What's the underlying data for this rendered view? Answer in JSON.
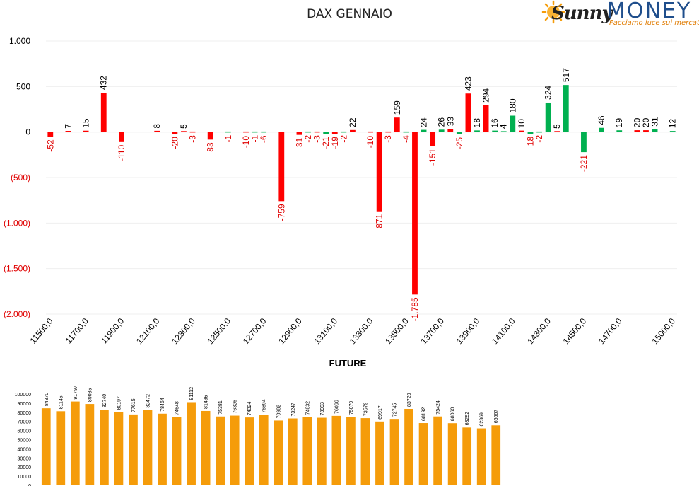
{
  "logo": {
    "brand_a": "Sunny",
    "brand_b": "MONEY",
    "tagline": "Facciamo luce sui mercati"
  },
  "colors": {
    "positive": "#00b050",
    "negative": "#ff0000",
    "future_bar": "#f59c0a",
    "negative_label": "#e00000"
  },
  "chart_data": [
    {
      "type": "bar",
      "title": "DAX GENNAIO",
      "ylim": [
        -2000,
        1000
      ],
      "yticks": [
        1000,
        500,
        0,
        -500,
        -1000,
        -1500,
        -2000
      ],
      "ytick_labels": [
        "1.000",
        "500",
        "0",
        "(500)",
        "(1.000)",
        "(1.500)",
        "(2.000)"
      ],
      "xtick_labels": [
        "11500,0",
        "11700,0",
        "11900,0",
        "12100,0",
        "12300,0",
        "12500,0",
        "12700,0",
        "12900,0",
        "13100,0",
        "13300,0",
        "13500,0",
        "13700,0",
        "13900,0",
        "14100,0",
        "14300,0",
        "14500,0",
        "14700,0",
        "15000,0"
      ],
      "x": [
        11500,
        11550,
        11600,
        11650,
        11700,
        11750,
        11800,
        11850,
        11900,
        11950,
        12000,
        12050,
        12100,
        12150,
        12200,
        12250,
        12300,
        12350,
        12400,
        12450,
        12500,
        12550,
        12600,
        12650,
        12700,
        12750,
        12800,
        12850,
        12900,
        12950,
        13000,
        13050,
        13100,
        13150,
        13200,
        13250,
        13300,
        13350,
        13400,
        13450,
        13500,
        13550,
        13600,
        13650,
        13700,
        13750,
        13800,
        13850,
        13900,
        13950,
        14000,
        14050,
        14100,
        14150,
        14200,
        14250,
        14300,
        14350,
        14400,
        14450,
        14500,
        14550,
        14600,
        14650,
        14700,
        14750,
        14800,
        14850,
        14900,
        14950,
        15000
      ],
      "values": [
        -52,
        null,
        7,
        null,
        15,
        null,
        432,
        null,
        -110,
        null,
        null,
        null,
        8,
        null,
        -20,
        5,
        -3,
        null,
        -83,
        null,
        -1,
        null,
        -10,
        -1,
        -6,
        null,
        -759,
        null,
        -31,
        -2,
        -3,
        -21,
        -19,
        -2,
        22,
        null,
        -10,
        -871,
        -3,
        159,
        -4,
        -1785,
        24,
        -151,
        26,
        33,
        -25,
        423,
        18,
        294,
        16,
        4,
        180,
        10,
        -18,
        -2,
        324,
        5,
        517,
        null,
        -221,
        null,
        46,
        null,
        19,
        null,
        20,
        20,
        31,
        null,
        12
      ]
    },
    {
      "type": "bar",
      "title": "FUTURE",
      "ylim": [
        0,
        100000
      ],
      "ytick_labels": [
        "0",
        "10000",
        "20000",
        "30000",
        "40000",
        "50000",
        "60000",
        "70000",
        "80000",
        "90000",
        "100000"
      ],
      "values": [
        84370,
        81145,
        91797,
        89085,
        82740,
        80197,
        77615,
        82472,
        78464,
        74648,
        91112,
        81435,
        75381,
        76326,
        74324,
        76894,
        70982,
        73247,
        74832,
        73993,
        76066,
        75079,
        73579,
        69917,
        72745,
        83729,
        68192,
        75424,
        68060,
        63292,
        62369,
        65667
      ]
    }
  ]
}
